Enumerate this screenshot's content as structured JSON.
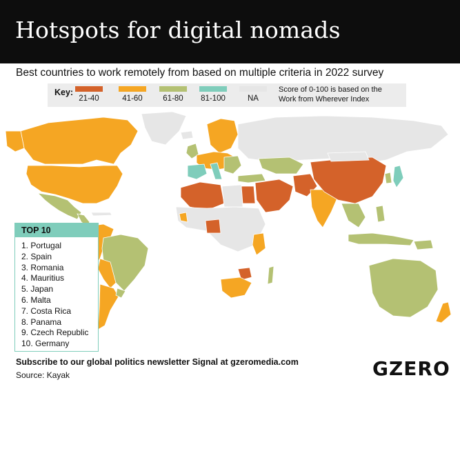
{
  "title": "Hotspots for digital nomads",
  "subtitle": "Best countries to work remotely from based on multiple criteria in 2022 survey",
  "key": {
    "title": "Key:",
    "items": [
      {
        "label": "21-40",
        "color": "#d4622a"
      },
      {
        "label": "41-60",
        "color": "#f5a623"
      },
      {
        "label": "61-80",
        "color": "#b4c173"
      },
      {
        "label": "81-100",
        "color": "#7fcdbb"
      },
      {
        "label": "NA",
        "color": "#e6e6e6"
      }
    ],
    "note_line1": "Score of 0-100 is based on the",
    "note_line2": "Work from Wherever Index"
  },
  "top10": {
    "title": "TOP 10",
    "items": [
      "1. Portugal",
      "2. Spain",
      "3. Romania",
      "4. Mauritius",
      "5. Japan",
      "6. Malta",
      "7. Costa Rica",
      "8. Panama",
      "9. Czech Republic",
      "10. Germany"
    ]
  },
  "footer": {
    "subscribe": "Subscribe to our global politics newsletter Signal at gzeromedia.com",
    "source": "Source: Kayak"
  },
  "logo": "GZERO"
}
